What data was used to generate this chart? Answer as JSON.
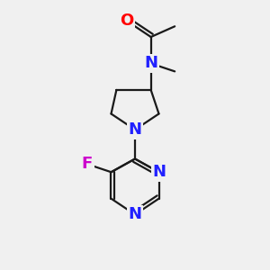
{
  "background_color": "#f0f0f0",
  "bond_color": "#1a1a1a",
  "atom_colors": {
    "O": "#ff0000",
    "N": "#2020ff",
    "F": "#cc00cc",
    "C": "#1a1a1a"
  },
  "figsize": [
    3.0,
    3.0
  ],
  "dpi": 100,
  "bond_lw": 1.6,
  "font_size": 13
}
